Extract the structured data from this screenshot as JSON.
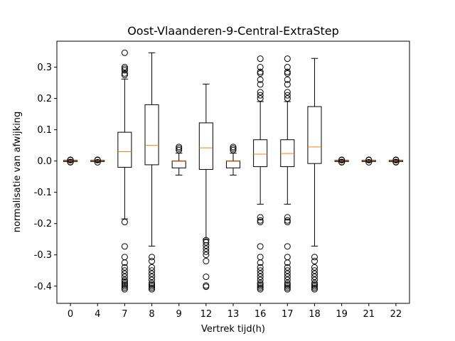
{
  "chart_data": {
    "type": "boxplot",
    "title": "Oost-Vlaanderen-9-Central-ExtraStep",
    "xlabel": "Vertrek tijd(h)",
    "ylabel": "normalisatie van afwijking",
    "ylim": [
      -0.455,
      0.383
    ],
    "yticks": [
      "-0.4",
      "-0.3",
      "-0.2",
      "-0.1",
      "0.0",
      "0.1",
      "0.2",
      "0.3"
    ],
    "ytick_values": [
      -0.4,
      -0.3,
      -0.2,
      -0.1,
      0.0,
      0.1,
      0.2,
      0.3
    ],
    "grid": false,
    "colors": {
      "box": "#000000",
      "median": "#ff7f0e",
      "frame": "#000000"
    },
    "categories": [
      "0",
      "4",
      "7",
      "8",
      "9",
      "12",
      "13",
      "16",
      "17",
      "18",
      "19",
      "21",
      "22"
    ],
    "boxes": [
      {
        "q1": -0.002,
        "median": 0.0,
        "q3": 0.002,
        "whisker_low": -0.003,
        "whisker_high": 0.003,
        "outliers": [
          -0.004,
          -0.003,
          0.003,
          0.004
        ]
      },
      {
        "q1": -0.002,
        "median": 0.0,
        "q3": 0.002,
        "whisker_low": -0.003,
        "whisker_high": 0.003,
        "outliers": [
          -0.004,
          0.003,
          0.004
        ]
      },
      {
        "q1": -0.02,
        "median": 0.03,
        "q3": 0.092,
        "whisker_low": -0.185,
        "whisker_high": 0.262,
        "outliers": [
          0.346,
          0.3,
          0.295,
          0.29,
          0.28,
          0.275,
          -0.195,
          -0.273,
          -0.307,
          -0.325,
          -0.34,
          -0.35,
          -0.36,
          -0.37,
          -0.38,
          -0.385,
          -0.39,
          -0.395,
          -0.4,
          -0.405,
          -0.41
        ]
      },
      {
        "q1": -0.012,
        "median": 0.05,
        "q3": 0.18,
        "whisker_low": -0.272,
        "whisker_high": 0.346,
        "outliers": [
          -0.307,
          -0.32,
          -0.34,
          -0.35,
          -0.36,
          -0.37,
          -0.38,
          -0.39,
          -0.395,
          -0.4,
          -0.405,
          -0.41
        ]
      },
      {
        "q1": -0.022,
        "median": -0.001,
        "q3": 0.0,
        "whisker_low": -0.045,
        "whisker_high": 0.025,
        "outliers": [
          0.035,
          0.04,
          0.045
        ]
      },
      {
        "q1": -0.027,
        "median": 0.042,
        "q3": 0.122,
        "whisker_low": -0.25,
        "whisker_high": 0.246,
        "outliers": [
          -0.253,
          -0.26,
          -0.27,
          -0.28,
          -0.29,
          -0.3,
          -0.32,
          -0.37,
          -0.398,
          -0.402
        ]
      },
      {
        "q1": -0.022,
        "median": -0.001,
        "q3": 0.0,
        "whisker_low": -0.045,
        "whisker_high": 0.025,
        "outliers": [
          0.035,
          0.04,
          0.045
        ]
      },
      {
        "q1": -0.018,
        "median": 0.022,
        "q3": 0.068,
        "whisker_low": -0.138,
        "whisker_high": 0.19,
        "outliers": [
          0.327,
          0.3,
          0.285,
          0.28,
          0.26,
          0.245,
          0.22,
          0.21,
          0.2,
          -0.18,
          -0.19,
          -0.195,
          -0.273,
          -0.307,
          -0.325,
          -0.34,
          -0.35,
          -0.36,
          -0.37,
          -0.38,
          -0.39,
          -0.395,
          -0.4,
          -0.405,
          -0.41
        ]
      },
      {
        "q1": -0.018,
        "median": 0.024,
        "q3": 0.068,
        "whisker_low": -0.138,
        "whisker_high": 0.19,
        "outliers": [
          0.327,
          0.3,
          0.285,
          0.28,
          0.26,
          0.245,
          0.22,
          0.21,
          0.2,
          -0.18,
          -0.19,
          -0.195,
          -0.273,
          -0.307,
          -0.325,
          -0.34,
          -0.35,
          -0.36,
          -0.37,
          -0.38,
          -0.39,
          -0.395,
          -0.4,
          -0.405,
          -0.41
        ]
      },
      {
        "q1": -0.008,
        "median": 0.045,
        "q3": 0.174,
        "whisker_low": -0.272,
        "whisker_high": 0.328,
        "outliers": [
          -0.307,
          -0.32,
          -0.34,
          -0.35,
          -0.36,
          -0.37,
          -0.38,
          -0.39,
          -0.395,
          -0.4,
          -0.405,
          -0.41
        ]
      },
      {
        "q1": -0.002,
        "median": 0.0,
        "q3": 0.002,
        "whisker_low": -0.003,
        "whisker_high": 0.003,
        "outliers": [
          -0.004,
          -0.003,
          0.003,
          0.004
        ]
      },
      {
        "q1": -0.002,
        "median": 0.0,
        "q3": 0.002,
        "whisker_low": -0.003,
        "whisker_high": 0.003,
        "outliers": [
          -0.004,
          0.003,
          0.004
        ]
      },
      {
        "q1": -0.002,
        "median": 0.0,
        "q3": 0.002,
        "whisker_low": -0.003,
        "whisker_high": 0.003,
        "outliers": [
          -0.004,
          -0.003,
          0.003,
          0.004
        ]
      }
    ]
  }
}
